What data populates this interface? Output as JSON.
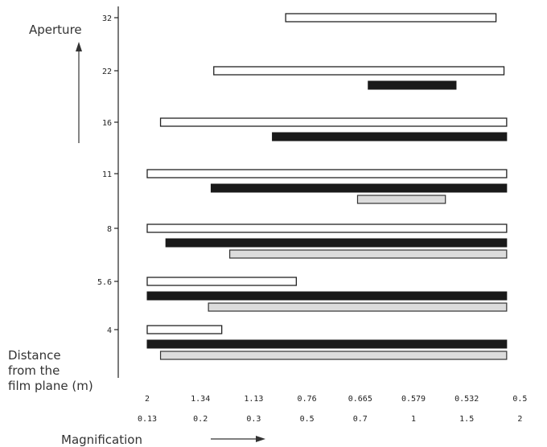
{
  "chart_data": {
    "type": "bar",
    "orientation": "horizontal-range",
    "y_axis": {
      "label": "Aperture",
      "categories": [
        "4",
        "5.6",
        "8",
        "11",
        "16",
        "22",
        "32"
      ]
    },
    "x_axis": {
      "label_distance": "Distance\nfrom the\nfilm plane (m)",
      "distance_ticks": [
        "2",
        "1.34",
        "1.13",
        "0.76",
        "0.665",
        "0.579",
        "0.532",
        "0.5"
      ],
      "label_magnification": "Magnification",
      "magnification_ticks": [
        "0.13",
        "0.2",
        "0.3",
        "0.5",
        "0.7",
        "1",
        "1.5",
        "2"
      ]
    },
    "series": [
      {
        "style": "white",
        "color": "#ffffff"
      },
      {
        "style": "black",
        "color": "#1a1a1a"
      },
      {
        "style": "dotted",
        "color": "#dcdcdc"
      }
    ],
    "bars": [
      {
        "aperture": "32",
        "style": "white",
        "from": 2.6,
        "to": 6.55
      },
      {
        "aperture": "22",
        "style": "white",
        "from": 1.25,
        "to": 6.7
      },
      {
        "aperture": "22",
        "style": "black",
        "from": 4.15,
        "to": 5.8
      },
      {
        "aperture": "16",
        "style": "white",
        "from": 0.25,
        "to": 6.75
      },
      {
        "aperture": "16",
        "style": "black",
        "from": 2.35,
        "to": 6.75
      },
      {
        "aperture": "11",
        "style": "white",
        "from": 0.0,
        "to": 6.75
      },
      {
        "aperture": "11",
        "style": "black",
        "from": 1.2,
        "to": 6.75
      },
      {
        "aperture": "11",
        "style": "dotted",
        "from": 3.95,
        "to": 5.6
      },
      {
        "aperture": "8",
        "style": "white",
        "from": 0.0,
        "to": 6.75
      },
      {
        "aperture": "8",
        "style": "black",
        "from": 0.35,
        "to": 6.75
      },
      {
        "aperture": "8",
        "style": "dotted",
        "from": 1.55,
        "to": 6.75
      },
      {
        "aperture": "5.6",
        "style": "white",
        "from": 0.0,
        "to": 2.8
      },
      {
        "aperture": "5.6",
        "style": "black",
        "from": 0.0,
        "to": 6.75
      },
      {
        "aperture": "5.6",
        "style": "dotted",
        "from": 1.15,
        "to": 6.75
      },
      {
        "aperture": "4",
        "style": "white",
        "from": 0.0,
        "to": 1.4
      },
      {
        "aperture": "4",
        "style": "black",
        "from": 0.0,
        "to": 6.75
      },
      {
        "aperture": "4",
        "style": "dotted",
        "from": 0.25,
        "to": 6.75
      }
    ]
  }
}
